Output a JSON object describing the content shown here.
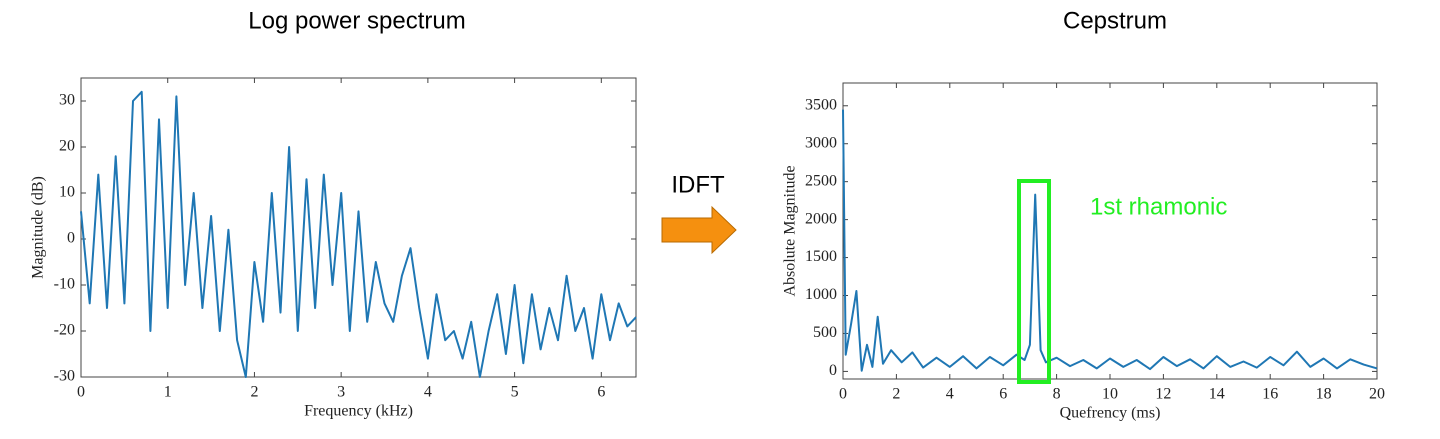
{
  "arrow_label": "IDFT",
  "chart_data": [
    {
      "type": "line",
      "title": "Log power spectrum",
      "xlabel": "Frequency (kHz)",
      "ylabel": "Magnitude (dB)",
      "color": "#1f77b4",
      "x": [
        0,
        0.1,
        0.2,
        0.3,
        0.4,
        0.5,
        0.6,
        0.7,
        0.8,
        0.9,
        1.0,
        1.1,
        1.2,
        1.3,
        1.4,
        1.5,
        1.6,
        1.7,
        1.8,
        1.9,
        2.0,
        2.1,
        2.2,
        2.3,
        2.4,
        2.5,
        2.6,
        2.7,
        2.8,
        2.9,
        3.0,
        3.1,
        3.2,
        3.3,
        3.4,
        3.5,
        3.6,
        3.7,
        3.8,
        3.9,
        4.0,
        4.1,
        4.2,
        4.3,
        4.4,
        4.5,
        4.6,
        4.7,
        4.8,
        4.9,
        5.0,
        5.1,
        5.2,
        5.3,
        5.4,
        5.5,
        5.6,
        5.7,
        5.8,
        5.9,
        6.0,
        6.1,
        6.2,
        6.3,
        6.4
      ],
      "values": [
        6,
        -14,
        14,
        -15,
        18,
        -14,
        30,
        32,
        -20,
        26,
        -15,
        31,
        -10,
        10,
        -15,
        5,
        -20,
        2,
        -22,
        -30,
        -5,
        -18,
        10,
        -16,
        20,
        -20,
        13,
        -15,
        14,
        -10,
        10,
        -20,
        6,
        -18,
        -5,
        -14,
        -18,
        -8,
        -2,
        -15,
        -26,
        -12,
        -22,
        -20,
        -26,
        -18,
        -30,
        -20,
        -12,
        -25,
        -10,
        -27,
        -12,
        -24,
        -15,
        -22,
        -8,
        -20,
        -15,
        -26,
        -12,
        -22,
        -14,
        -19,
        -17
      ],
      "xlim": [
        0,
        6.4
      ],
      "ylim": [
        -30,
        35
      ],
      "xticks": [
        0,
        1,
        2,
        3,
        4,
        5,
        6
      ],
      "yticks": [
        -30,
        -20,
        -10,
        0,
        10,
        20,
        30
      ]
    },
    {
      "type": "line",
      "title": "Cepstrum",
      "xlabel": "Quefrency (ms)",
      "ylabel": "Absolute Magnitude",
      "color": "#1f77b4",
      "annotation": "1st rhamonic",
      "x": [
        0,
        0.1,
        0.3,
        0.5,
        0.7,
        0.9,
        1.1,
        1.3,
        1.5,
        1.8,
        2.2,
        2.6,
        3,
        3.5,
        4,
        4.5,
        5,
        5.5,
        6,
        6.5,
        6.8,
        7.0,
        7.2,
        7.4,
        7.6,
        8,
        8.5,
        9,
        9.5,
        10,
        10.5,
        11,
        11.5,
        12,
        12.5,
        13,
        13.5,
        14,
        14.5,
        15,
        15.5,
        16,
        16.5,
        17,
        17.5,
        18,
        18.5,
        19,
        19.5,
        20
      ],
      "values": [
        3450,
        220,
        620,
        1060,
        10,
        350,
        60,
        720,
        100,
        280,
        120,
        250,
        50,
        180,
        60,
        200,
        40,
        190,
        80,
        220,
        150,
        350,
        2330,
        280,
        120,
        180,
        70,
        150,
        40,
        170,
        60,
        150,
        30,
        190,
        70,
        160,
        40,
        200,
        60,
        130,
        50,
        190,
        80,
        260,
        60,
        170,
        40,
        160,
        90,
        40
      ],
      "xlim": [
        0,
        20
      ],
      "ylim": [
        -100,
        3800
      ],
      "xticks": [
        0,
        2,
        4,
        6,
        8,
        10,
        12,
        14,
        16,
        18,
        20
      ],
      "yticks": [
        0,
        500,
        1000,
        1500,
        2000,
        2500,
        3000,
        3500
      ]
    }
  ]
}
